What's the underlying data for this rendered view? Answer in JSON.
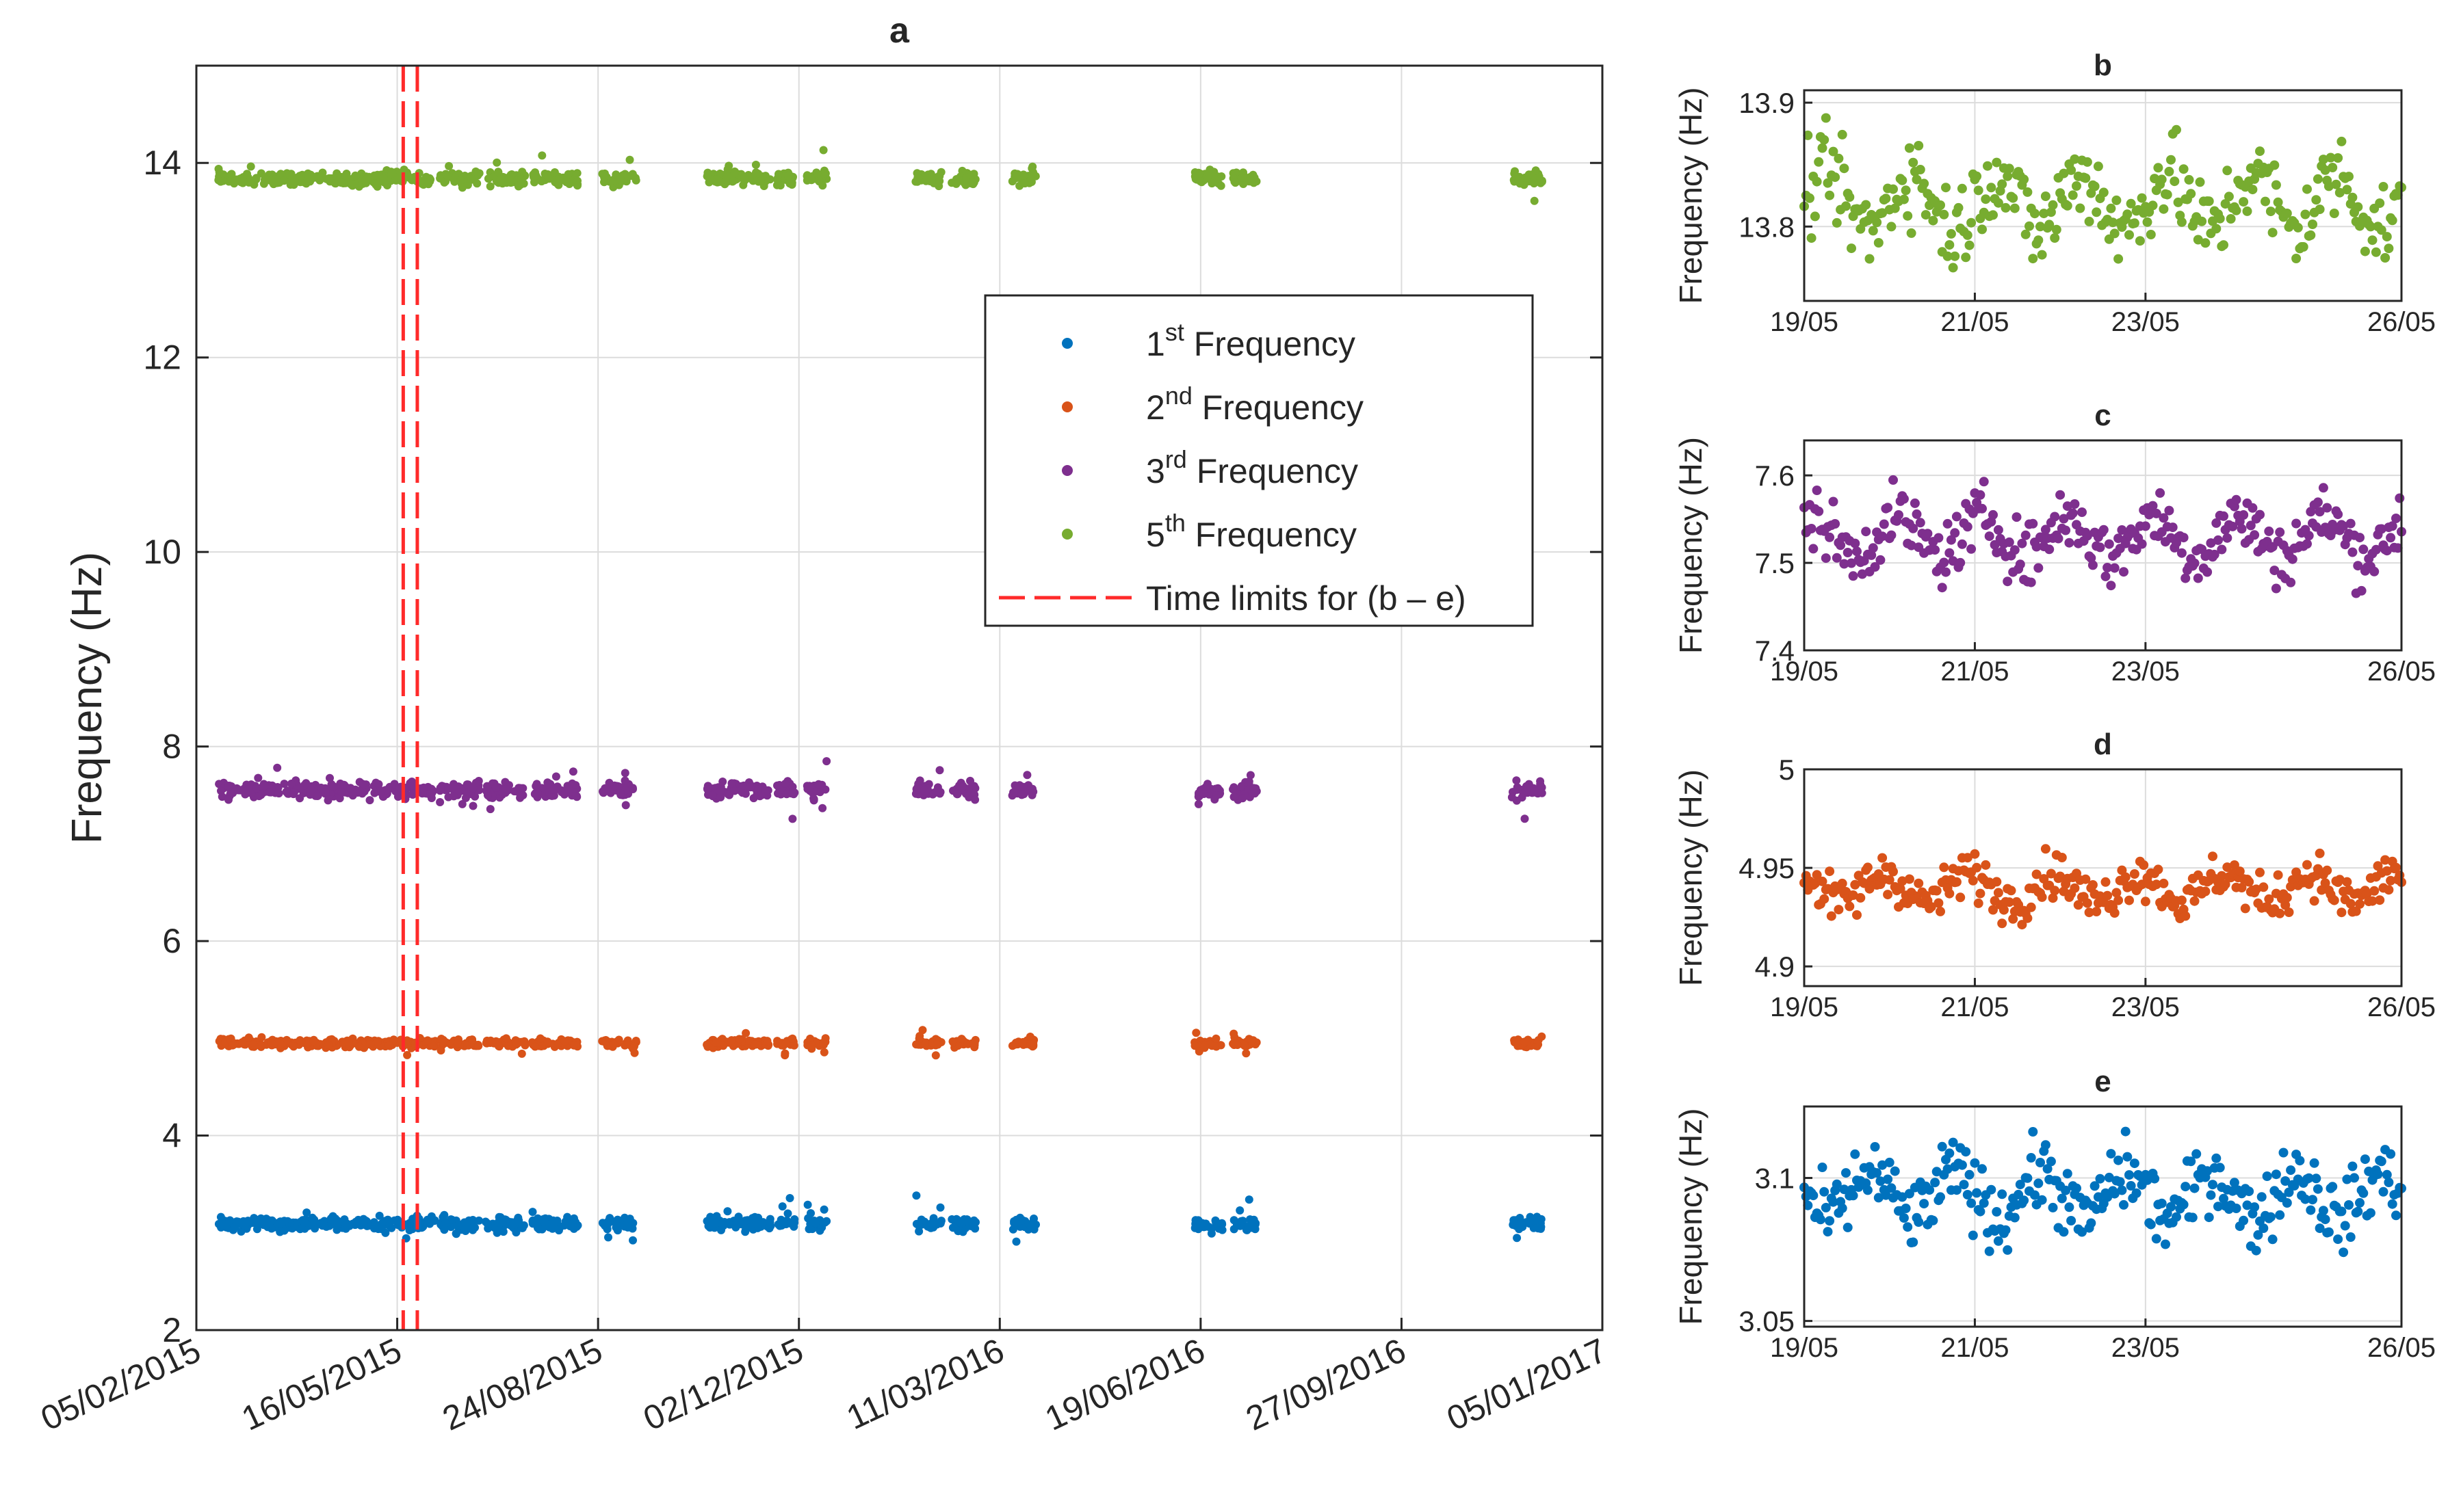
{
  "colors": {
    "first": "#0072BD",
    "second": "#D95319",
    "third": "#7E2F8E",
    "fifth": "#77AC30",
    "limits": "#FF2A2A"
  },
  "chart_data": [
    {
      "id": "a",
      "type": "scatter",
      "title": "a",
      "xlabel": "",
      "ylabel": "Frequency (Hz)",
      "ylim": [
        2,
        15
      ],
      "yticks": [
        2,
        4,
        6,
        8,
        10,
        12,
        14
      ],
      "xlim": [
        "05/02/2015",
        "05/01/2017"
      ],
      "xticks": [
        "05/02/2015",
        "16/05/2015",
        "24/08/2015",
        "02/12/2015",
        "11/03/2016",
        "19/06/2016",
        "27/09/2016",
        "05/01/2017"
      ],
      "grid": true,
      "legend_position": "center-right",
      "legend": [
        {
          "ordinal": "1",
          "sup": "st",
          "text": " Frequency"
        },
        {
          "ordinal": "2",
          "sup": "nd",
          "text": " Frequency"
        },
        {
          "ordinal": "3",
          "sup": "rd",
          "text": " Frequency"
        },
        {
          "ordinal": "5",
          "sup": "th",
          "text": " Frequency"
        },
        {
          "text": "Time limits for (b – e)"
        }
      ],
      "time_limits": [
        "19/05/2015",
        "26/05/2015"
      ],
      "series": [
        {
          "name": "1st Frequency",
          "mean": 3.09,
          "spread": 0.1
        },
        {
          "name": "2nd Frequency",
          "mean": 4.95,
          "spread": 0.06
        },
        {
          "name": "3rd Frequency",
          "mean": 7.55,
          "spread": 0.12
        },
        {
          "name": "5th Frequency",
          "mean": 13.84,
          "spread": 0.1
        }
      ],
      "data_segments": [
        [
          "16/02/2015",
          "04/06/2015"
        ],
        [
          "06/06/2015",
          "26/06/2015"
        ],
        [
          "29/06/2015",
          "19/07/2015"
        ],
        [
          "22/07/2015",
          "14/08/2015"
        ],
        [
          "26/08/2015",
          "12/09/2015"
        ],
        [
          "17/10/2015",
          "18/11/2015"
        ],
        [
          "21/11/2015",
          "30/11/2015"
        ],
        [
          "06/12/2015",
          "16/12/2015"
        ],
        [
          "29/01/2016",
          "11/02/2016"
        ],
        [
          "16/02/2016",
          "28/02/2016"
        ],
        [
          "17/03/2016",
          "29/03/2016"
        ],
        [
          "16/06/2016",
          "30/06/2016"
        ],
        [
          "05/07/2016",
          "17/07/2016"
        ],
        [
          "21/11/2016",
          "06/12/2016"
        ]
      ]
    },
    {
      "id": "b",
      "type": "scatter",
      "title": "b",
      "ylabel": "Frequency (Hz)",
      "series_name": "5th Frequency",
      "ylim": [
        13.74,
        13.91
      ],
      "yticks": [
        13.8,
        13.9
      ],
      "ytick_labels": [
        "13.8",
        "13.9"
      ],
      "xlim": [
        "19/05",
        "26/05"
      ],
      "xticks": [
        "19/05",
        "21/05",
        "23/05",
        "26/05"
      ],
      "mean": 13.82,
      "spread": 0.04,
      "grid": true
    },
    {
      "id": "c",
      "type": "scatter",
      "title": "c",
      "ylabel": "Frequency (Hz)",
      "series_name": "3rd Frequency",
      "ylim": [
        7.4,
        7.64
      ],
      "yticks": [
        7.4,
        7.5,
        7.6
      ],
      "ytick_labels": [
        "7.4",
        "7.5",
        "7.6"
      ],
      "xlim": [
        "19/05",
        "26/05"
      ],
      "xticks": [
        "19/05",
        "21/05",
        "23/05",
        "26/05"
      ],
      "mean": 7.53,
      "spread": 0.04,
      "grid": true
    },
    {
      "id": "d",
      "type": "scatter",
      "title": "d",
      "ylabel": "Frequency (Hz)",
      "series_name": "2nd Frequency",
      "ylim": [
        4.89,
        5.0
      ],
      "yticks": [
        4.9,
        4.95,
        5
      ],
      "ytick_labels": [
        "4.9",
        "4.95",
        "5"
      ],
      "xlim": [
        "19/05",
        "26/05"
      ],
      "xticks": [
        "19/05",
        "21/05",
        "23/05",
        "26/05"
      ],
      "mean": 4.94,
      "spread": 0.013,
      "grid": true
    },
    {
      "id": "e",
      "type": "scatter",
      "title": "e",
      "ylabel": "Frequency (Hz)",
      "series_name": "1st Frequency",
      "ylim": [
        3.048,
        3.125
      ],
      "yticks": [
        3.05,
        3.1
      ],
      "ytick_labels": [
        "3.05",
        "3.1"
      ],
      "xlim": [
        "19/05",
        "26/05"
      ],
      "xticks": [
        "19/05",
        "21/05",
        "23/05",
        "26/05"
      ],
      "mean": 3.094,
      "spread": 0.014,
      "grid": true
    }
  ]
}
